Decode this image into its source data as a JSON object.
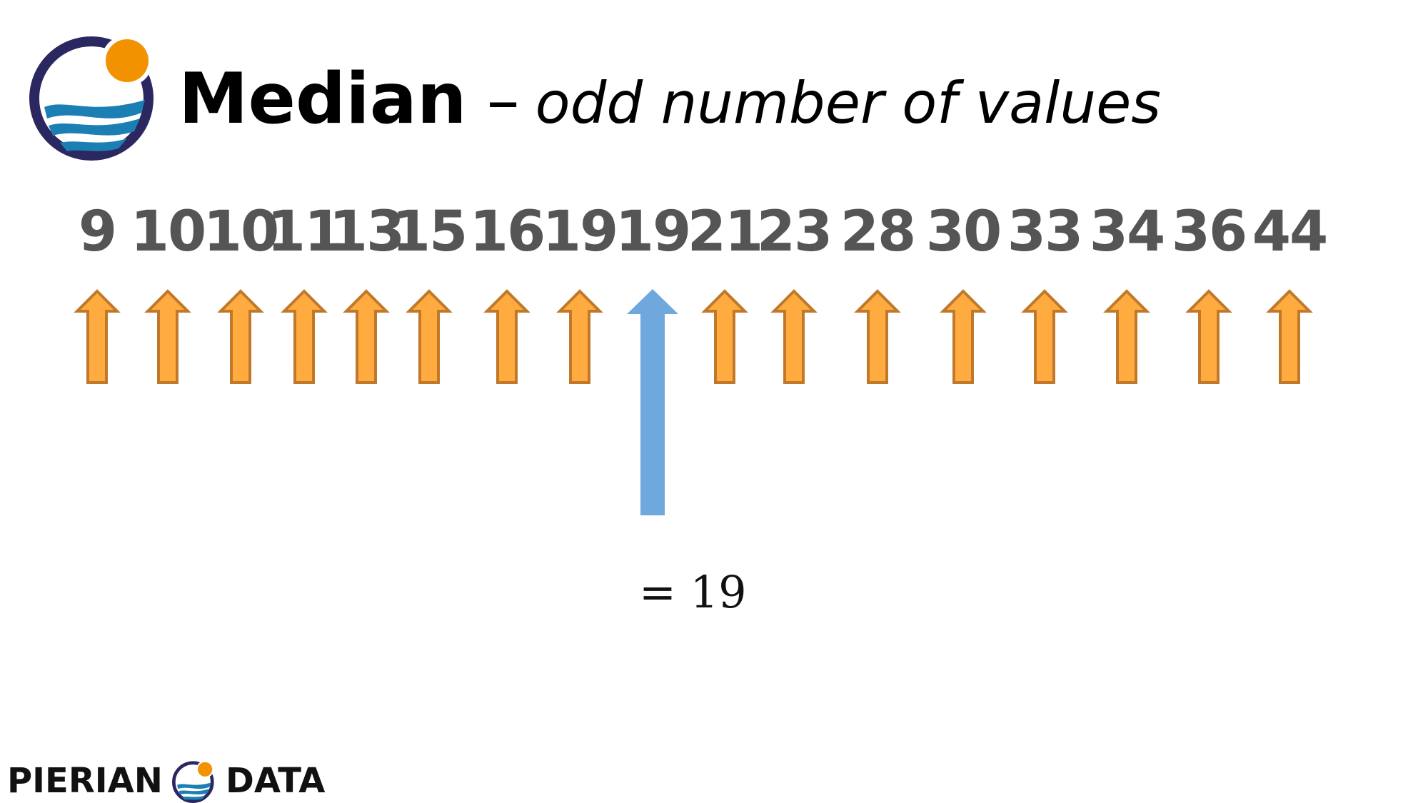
{
  "title": {
    "main": "Median",
    "dash": "–",
    "subtitle": "odd number of values"
  },
  "values": [
    9,
    10,
    10,
    11,
    13,
    15,
    16,
    19,
    19,
    21,
    23,
    28,
    30,
    33,
    34,
    36,
    44
  ],
  "median_index": 8,
  "result": "= 19",
  "footer": {
    "left": "PIERIAN",
    "right": "DATA"
  },
  "colors": {
    "arrow_fill": "#FFAB40",
    "arrow_stroke": "#C0792A",
    "median_arrow": "#6FA8DC",
    "number_text": "#555555",
    "logo_ring": "#2B2760",
    "logo_sun": "#F39200",
    "logo_wave": "#1B7FB3"
  },
  "icons": {
    "logo": "pierian-data-logo",
    "arrow": "up-arrow-icon"
  }
}
